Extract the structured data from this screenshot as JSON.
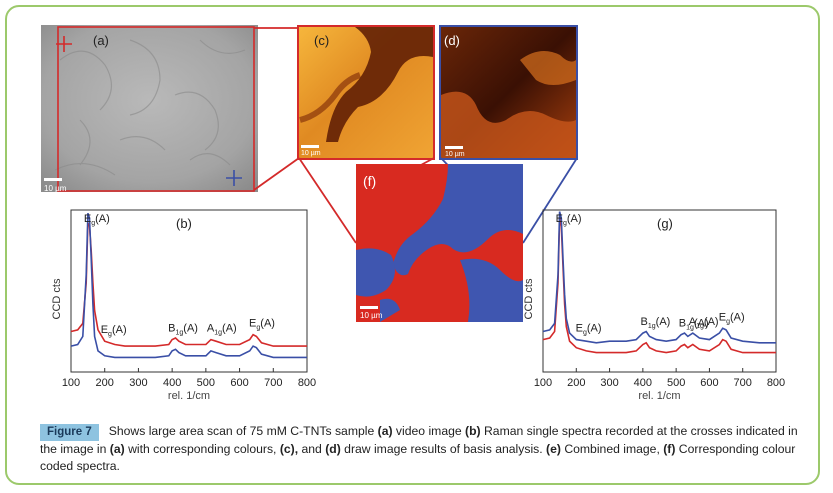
{
  "figure": {
    "panel_labels": {
      "a": "(a)",
      "b": "(b)",
      "c": "(c)",
      "d": "(d)",
      "f": "(f)",
      "g": "(g)"
    },
    "scale_bar": "10 µm",
    "caption": {
      "label": "Figure 7",
      "text_1": "Shows large area scan of 75 mM C-TNTs sample ",
      "a_ref": "(a)",
      "text_2": " video image ",
      "b_ref": "(b)",
      "text_3": " Raman single spectra recorded at the crosses indicated in the image in ",
      "a_ref2": "(a)",
      "text_4": " with corresponding colours, ",
      "c_ref": "(c),",
      "text_5": " and ",
      "d_ref": "(d)",
      "text_6": " draw image results of basis analysis. ",
      "e_ref": "(e)",
      "text_7": " Combined image, ",
      "f_ref": "(f)",
      "text_8": " Corresponding colour coded spectra."
    },
    "colors": {
      "red": "#d42a2a",
      "blue": "#3a4fa6",
      "green_border": "#9cc96b"
    }
  },
  "chart_data": [
    {
      "type": "line",
      "panel": "(b)",
      "xlabel": "rel. 1/cm",
      "ylabel": "CCD cts",
      "xlim": [
        100,
        800
      ],
      "x_ticks": [
        "100",
        "200",
        "300",
        "400",
        "500",
        "600",
        "700",
        "800"
      ],
      "peak_labels": [
        {
          "text": "Eg(A)",
          "main": "E",
          "sub": "g",
          "tail": "(A)",
          "x": 150
        },
        {
          "text": "Eg(A)",
          "main": "E",
          "sub": "g",
          "tail": "(A)",
          "x": 200
        },
        {
          "text": "B1g(A)",
          "main": "B",
          "sub": "1g",
          "tail": "(A)",
          "x": 400
        },
        {
          "text": "A1g(A)",
          "main": "A",
          "sub": "1g",
          "tail": "(A)",
          "x": 515
        },
        {
          "text": "Eg(A)",
          "main": "E",
          "sub": "g",
          "tail": "(A)",
          "x": 640
        }
      ],
      "series": [
        {
          "color": "red",
          "x": [
            100,
            120,
            135,
            145,
            150,
            155,
            160,
            165,
            170,
            180,
            200,
            230,
            260,
            300,
            350,
            390,
            400,
            410,
            420,
            440,
            470,
            500,
            515,
            530,
            560,
            600,
            630,
            640,
            650,
            665,
            700,
            750,
            800
          ],
          "y": [
            0.25,
            0.26,
            0.3,
            0.55,
            0.92,
            0.9,
            0.75,
            0.55,
            0.38,
            0.26,
            0.19,
            0.17,
            0.16,
            0.16,
            0.16,
            0.17,
            0.2,
            0.21,
            0.19,
            0.17,
            0.17,
            0.17,
            0.2,
            0.19,
            0.17,
            0.17,
            0.2,
            0.23,
            0.22,
            0.18,
            0.16,
            0.16,
            0.16
          ]
        },
        {
          "color": "blue",
          "x": [
            100,
            120,
            135,
            145,
            150,
            155,
            160,
            165,
            170,
            180,
            200,
            230,
            260,
            300,
            350,
            390,
            400,
            410,
            420,
            440,
            470,
            500,
            515,
            530,
            560,
            600,
            630,
            640,
            650,
            665,
            700,
            750,
            800
          ],
          "y": [
            0.16,
            0.17,
            0.22,
            0.6,
            0.98,
            0.95,
            0.7,
            0.42,
            0.22,
            0.13,
            0.1,
            0.09,
            0.09,
            0.09,
            0.09,
            0.1,
            0.13,
            0.14,
            0.12,
            0.1,
            0.1,
            0.1,
            0.13,
            0.12,
            0.1,
            0.1,
            0.13,
            0.16,
            0.15,
            0.11,
            0.09,
            0.09,
            0.09
          ]
        }
      ]
    },
    {
      "type": "line",
      "panel": "(g)",
      "xlabel": "rel. 1/cm",
      "ylabel": "CCD cts",
      "xlim": [
        100,
        800
      ],
      "x_ticks": [
        "100",
        "200",
        "300",
        "400",
        "500",
        "600",
        "700",
        "800"
      ],
      "peak_labels": [
        {
          "text": "Eg(A)",
          "main": "E",
          "sub": "g",
          "tail": "(A)",
          "x": 150
        },
        {
          "text": "Eg(A)",
          "main": "E",
          "sub": "g",
          "tail": "(A)",
          "x": 210
        },
        {
          "text": "B1g(A)",
          "main": "B",
          "sub": "1g",
          "tail": "(A)",
          "x": 405
        },
        {
          "text": "B1g(A)",
          "main": "B",
          "sub": "1g",
          "tail": "(A)",
          "x": 520
        },
        {
          "text": "A1g(A)",
          "main": "A",
          "sub": "1g",
          "tail": "(A)",
          "x": 550
        },
        {
          "text": "Eg(A)",
          "main": "E",
          "sub": "g",
          "tail": "(A)",
          "x": 640
        }
      ],
      "series": [
        {
          "color": "red",
          "x": [
            100,
            120,
            135,
            145,
            150,
            155,
            160,
            165,
            170,
            180,
            200,
            230,
            260,
            300,
            350,
            380,
            400,
            410,
            420,
            440,
            470,
            500,
            515,
            525,
            535,
            550,
            570,
            600,
            630,
            640,
            650,
            665,
            700,
            750,
            800
          ],
          "y": [
            0.2,
            0.21,
            0.25,
            0.55,
            0.95,
            0.9,
            0.65,
            0.42,
            0.28,
            0.19,
            0.15,
            0.13,
            0.12,
            0.12,
            0.12,
            0.13,
            0.17,
            0.18,
            0.15,
            0.13,
            0.12,
            0.13,
            0.16,
            0.17,
            0.15,
            0.17,
            0.14,
            0.13,
            0.17,
            0.2,
            0.19,
            0.14,
            0.12,
            0.12,
            0.12
          ]
        },
        {
          "color": "blue",
          "x": [
            100,
            120,
            135,
            145,
            150,
            155,
            160,
            165,
            170,
            180,
            200,
            230,
            260,
            300,
            350,
            380,
            400,
            410,
            420,
            440,
            470,
            500,
            515,
            525,
            535,
            550,
            570,
            600,
            630,
            640,
            650,
            665,
            700,
            750,
            800
          ],
          "y": [
            0.25,
            0.26,
            0.3,
            0.6,
            0.99,
            0.95,
            0.7,
            0.48,
            0.33,
            0.24,
            0.2,
            0.19,
            0.18,
            0.19,
            0.19,
            0.2,
            0.24,
            0.25,
            0.22,
            0.2,
            0.19,
            0.2,
            0.23,
            0.24,
            0.22,
            0.24,
            0.21,
            0.2,
            0.24,
            0.27,
            0.26,
            0.21,
            0.19,
            0.18,
            0.18
          ]
        }
      ]
    }
  ]
}
